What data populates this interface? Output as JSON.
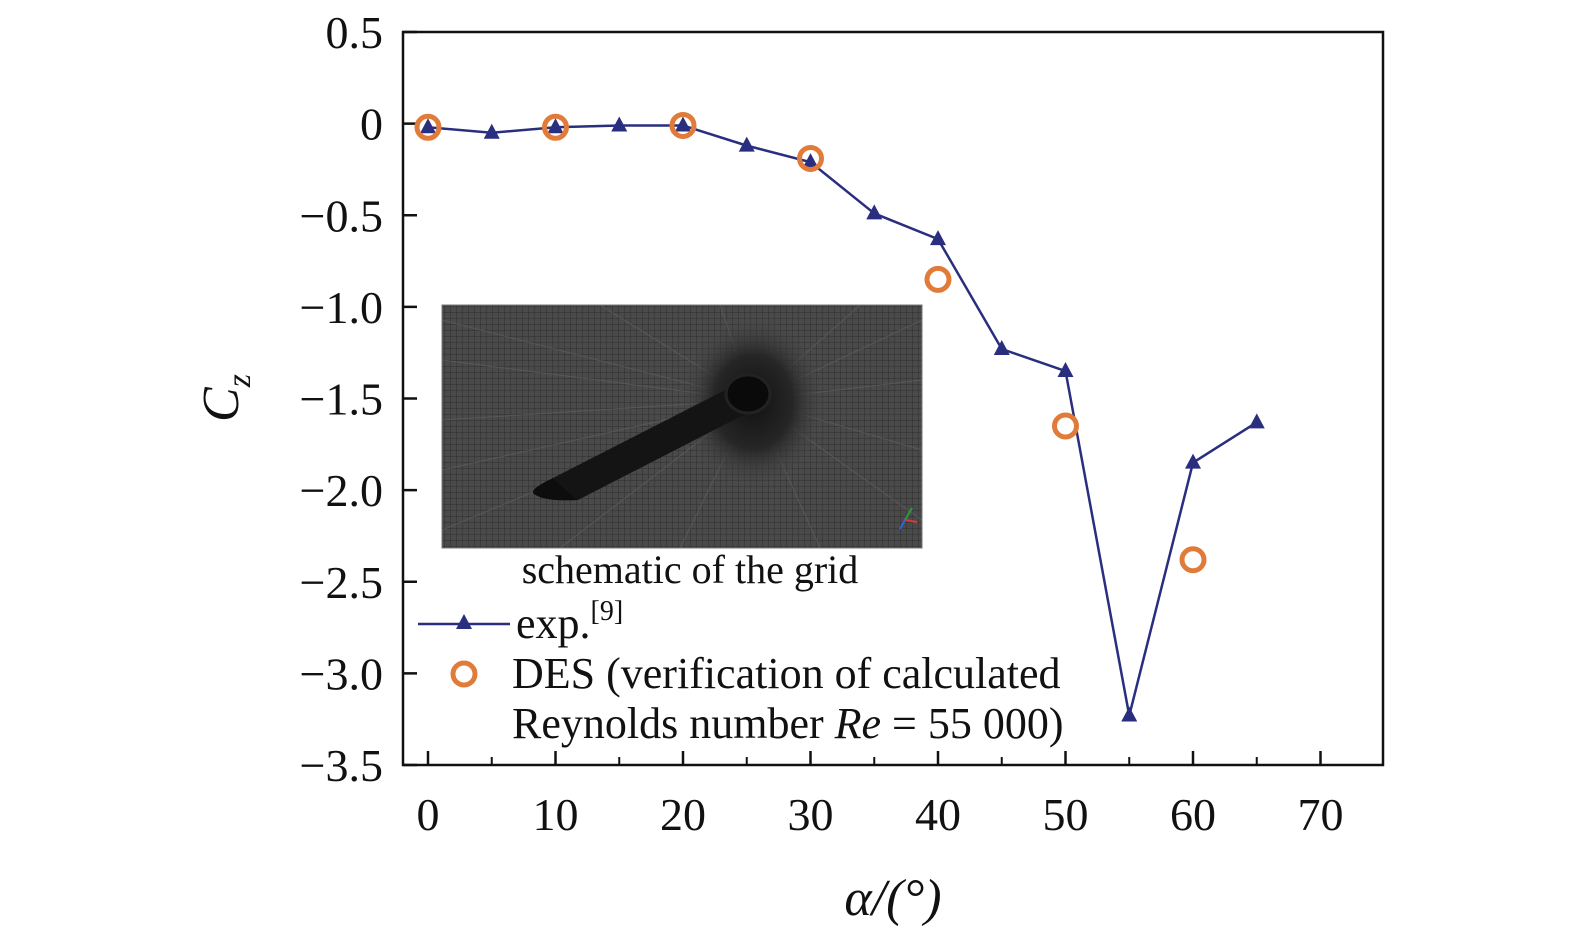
{
  "chart_data": {
    "type": "line",
    "xlabel": "α/(°)",
    "ylabel": "C",
    "ylabel_subscript": "z",
    "xlim": [
      -2,
      75
    ],
    "ylim": [
      -3.5,
      0.5
    ],
    "xticks": [
      0,
      10,
      20,
      30,
      40,
      50,
      60,
      70
    ],
    "yticks": [
      0.5,
      0,
      -0.5,
      -1.0,
      -1.5,
      -2.0,
      -2.5,
      -3.0,
      -3.5
    ],
    "ytick_labels": [
      "0.5",
      "0",
      "−0.5",
      "−1.0",
      "−1.5",
      "−2.0",
      "−2.5",
      "−3.0",
      "−3.5"
    ],
    "grid": false,
    "series": [
      {
        "name": "exp.",
        "name_superscript": "[9]",
        "marker": "triangle",
        "line": true,
        "color": "#2a2e7f",
        "x": [
          0,
          5,
          10,
          15,
          20,
          25,
          30,
          35,
          40,
          45,
          50,
          55,
          60,
          65
        ],
        "y": [
          -0.02,
          -0.05,
          -0.02,
          -0.01,
          -0.01,
          -0.12,
          -0.21,
          -0.49,
          -0.63,
          -1.23,
          -1.35,
          -3.23,
          -1.85,
          -1.63
        ]
      },
      {
        "name": "DES (verification of calculated",
        "name_line2_prefix": "Reynolds number ",
        "name_line2_italic": "Re",
        "name_line2_suffix": " = 55 000)",
        "marker": "circle-open",
        "line": false,
        "color": "#e07b39",
        "x": [
          0,
          10,
          20,
          30,
          40,
          50,
          60
        ],
        "y": [
          -0.02,
          -0.02,
          -0.01,
          -0.19,
          -0.85,
          -1.65,
          -2.38
        ]
      }
    ],
    "legend_position": "bottom-left",
    "inset": {
      "caption": "schematic of the grid",
      "mesh_color": "#3a3a3a",
      "body_color": "#111111"
    }
  }
}
